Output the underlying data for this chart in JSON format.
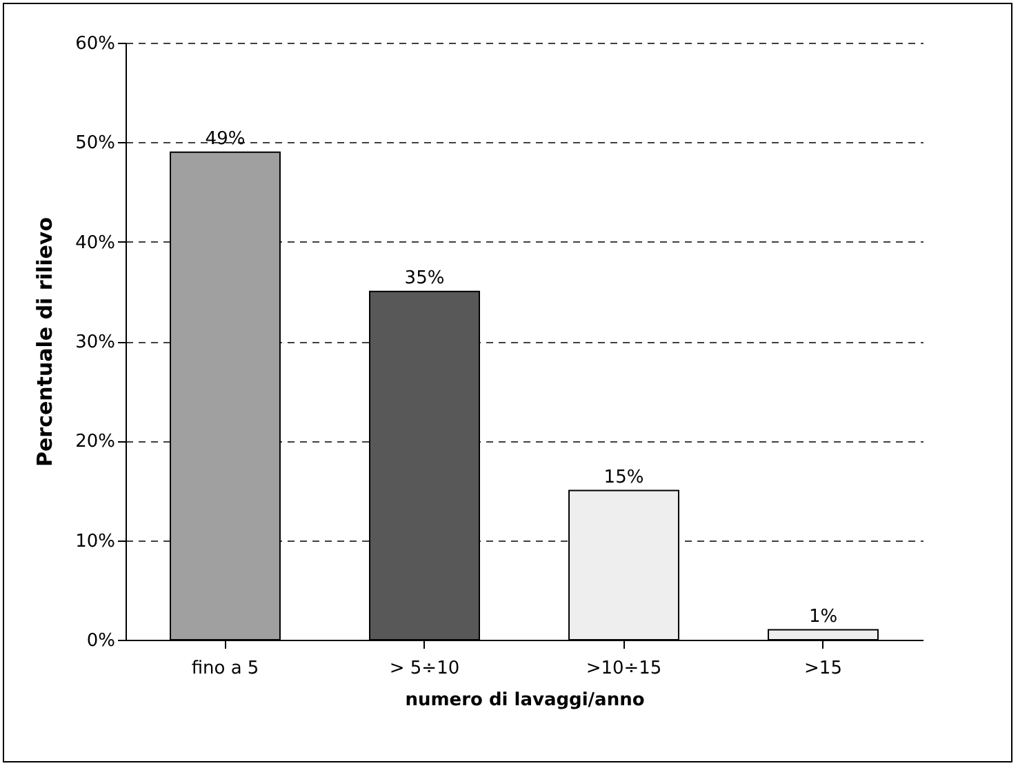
{
  "chart_data": {
    "type": "bar",
    "xlabel": "numero di lavaggi/anno",
    "ylabel": "Percentuale di rilievo",
    "categories": [
      "fino a 5",
      "> 5÷10",
      ">10÷15",
      ">15"
    ],
    "values": [
      49,
      35,
      15,
      1
    ],
    "colors": [
      "#a0a0a0",
      "#585858",
      "#eeeeee",
      "#eeeeee"
    ],
    "value_labels": [
      "49%",
      "35%",
      "15%",
      "1%"
    ],
    "ylim": [
      0,
      60
    ],
    "yticks": [
      {
        "value": 0,
        "label": "0%"
      },
      {
        "value": 10,
        "label": "10%"
      },
      {
        "value": 20,
        "label": "20%"
      },
      {
        "value": 30,
        "label": "30%"
      },
      {
        "value": 40,
        "label": "40%"
      },
      {
        "value": 50,
        "label": "50%"
      },
      {
        "value": 60,
        "label": "60%"
      }
    ],
    "grid": "y"
  }
}
